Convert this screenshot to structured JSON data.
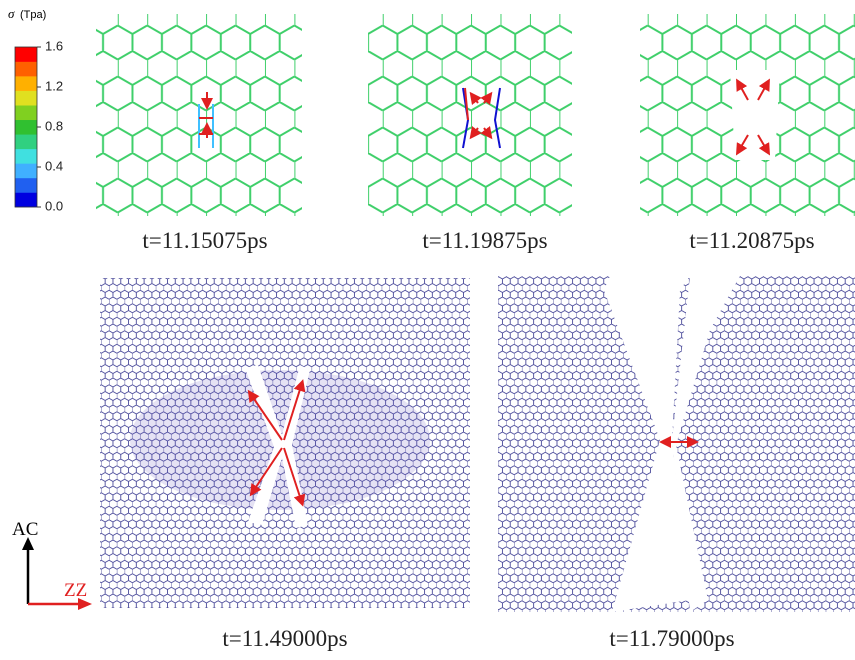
{
  "colorbar": {
    "symbol": "σ",
    "unit": "(Tpa)",
    "lim": [
      0,
      1.6
    ],
    "ticks": [
      {
        "value": 0,
        "label": "0.0"
      },
      0.4,
      0.8,
      1.2,
      1.6
    ],
    "colors": [
      "#0000e0",
      "#2060f0",
      "#40b0ff",
      "#40e0e0",
      "#30d080",
      "#30c030",
      "#80d020",
      "#e0e020",
      "#ffb000",
      "#ff6000",
      "#ff0000"
    ]
  },
  "panels": [
    {
      "caption": "t=11.15075ps"
    },
    {
      "caption": "t=11.19875ps"
    },
    {
      "caption": "t=11.20875ps"
    },
    {
      "caption": "t=11.49000ps"
    },
    {
      "caption": "t=11.79000ps"
    }
  ],
  "axes": {
    "vertical": "AC",
    "horizontal": "ZZ"
  }
}
